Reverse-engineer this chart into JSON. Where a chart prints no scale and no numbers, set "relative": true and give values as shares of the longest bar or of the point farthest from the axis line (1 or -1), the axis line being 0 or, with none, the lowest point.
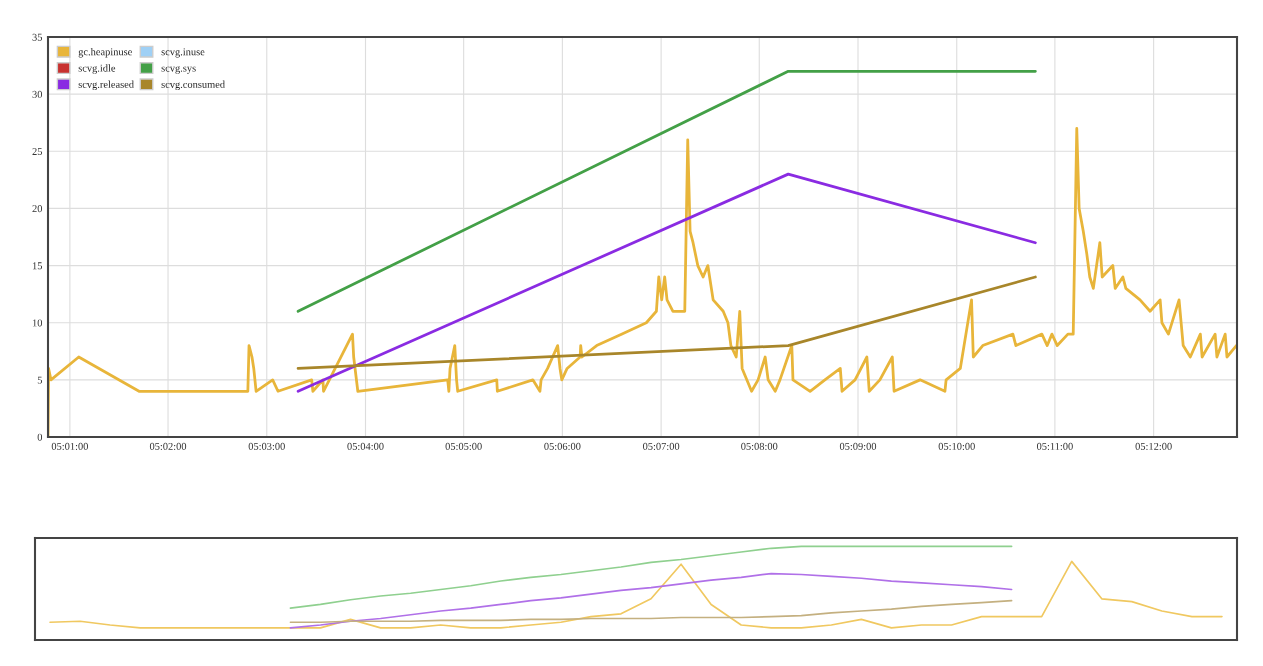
{
  "chart_data": [
    {
      "type": "line",
      "xlim": [
        5.013,
        5.2141
      ],
      "ylim": [
        0,
        35
      ],
      "xticks": [
        {
          "value": 5.0167,
          "label": "05:01:00"
        },
        {
          "value": 5.0333,
          "label": "05:02:00"
        },
        {
          "value": 5.05,
          "label": "05:03:00"
        },
        {
          "value": 5.0667,
          "label": "05:04:00"
        },
        {
          "value": 5.0833,
          "label": "05:05:00"
        },
        {
          "value": 5.1,
          "label": "05:06:00"
        },
        {
          "value": 5.1167,
          "label": "05:07:00"
        },
        {
          "value": 5.1333,
          "label": "05:08:00"
        },
        {
          "value": 5.15,
          "label": "05:09:00"
        },
        {
          "value": 5.1667,
          "label": "05:10:00"
        },
        {
          "value": 5.1833,
          "label": "05:11:00"
        },
        {
          "value": 5.2,
          "label": "05:12:00"
        }
      ],
      "yticks": [
        0,
        5,
        10,
        15,
        20,
        25,
        30,
        35
      ],
      "grid": true,
      "legend": "top left",
      "series": [
        {
          "name": "gc.heapinuse",
          "color": "#e8b53a",
          "x": [
            5.013,
            5.0131,
            5.0135,
            5.0182,
            5.0284,
            5.0468,
            5.047,
            5.0475,
            5.0478,
            5.0482,
            5.051,
            5.0519,
            5.0576,
            5.0578,
            5.0595,
            5.0596,
            5.0645,
            5.0647,
            5.0654,
            5.0806,
            5.0808,
            5.081,
            5.0818,
            5.0821,
            5.0823,
            5.0889,
            5.089,
            5.095,
            5.0962,
            5.0964,
            5.0975,
            5.0992,
            5.0996,
            5.0999,
            5.1008,
            5.103,
            5.1031,
            5.1033,
            5.1058,
            5.11,
            5.1142,
            5.1159,
            5.1163,
            5.1168,
            5.1173,
            5.1177,
            5.1187,
            5.1207,
            5.1212,
            5.1216,
            5.1221,
            5.1229,
            5.1238,
            5.1246,
            5.1255,
            5.1272,
            5.128,
            5.1285,
            5.1294,
            5.13,
            5.1304,
            5.132,
            5.1331,
            5.1343,
            5.1348,
            5.136,
            5.1368,
            5.1388,
            5.139,
            5.1419,
            5.1444,
            5.147,
            5.1473,
            5.1495,
            5.1515,
            5.1519,
            5.1537,
            5.1558,
            5.1561,
            5.1605,
            5.1647,
            5.1649,
            5.1673,
            5.1692,
            5.1695,
            5.1711,
            5.1762,
            5.1767,
            5.1811,
            5.182,
            5.1828,
            5.1837,
            5.1855,
            5.1864,
            5.187,
            5.1874,
            5.1881,
            5.1887,
            5.1892,
            5.1898,
            5.1909,
            5.1913,
            5.1931,
            5.1935,
            5.1948,
            5.1953,
            5.1977,
            5.1994,
            5.2011,
            5.2014,
            5.2025,
            5.2043,
            5.205,
            5.2062,
            5.2079,
            5.2082,
            5.2104,
            5.2107,
            5.2121,
            5.2124,
            5.214
          ],
          "values": [
            0,
            6,
            5,
            7,
            4,
            4,
            8,
            7,
            6,
            4,
            5,
            4,
            5,
            4,
            5,
            4,
            9,
            7,
            4,
            5,
            4,
            6,
            8,
            5,
            4,
            5,
            4,
            5,
            4,
            5,
            6,
            8,
            6,
            5,
            6,
            7,
            8,
            7,
            8,
            9,
            10,
            11,
            14,
            12,
            14,
            12,
            11,
            11,
            26,
            18,
            17,
            15,
            14,
            15,
            12,
            11,
            10,
            8,
            7,
            11,
            6,
            4,
            5,
            7,
            5,
            4,
            5,
            8,
            5,
            4,
            5,
            6,
            4,
            5,
            7,
            4,
            5,
            7,
            4,
            5,
            4,
            5,
            6,
            12,
            7,
            8,
            9,
            8,
            9,
            8,
            9,
            8,
            9,
            9,
            27,
            20,
            18,
            16,
            14,
            13,
            17,
            14,
            15,
            13,
            14,
            13,
            12,
            11,
            12,
            10,
            9,
            12,
            8,
            7,
            9,
            7,
            9,
            7,
            9,
            7,
            8
          ]
        },
        {
          "name": "scvg.inuse",
          "color": "#9fd0f5"
        },
        {
          "name": "scvg.idle",
          "color": "#c8312f"
        },
        {
          "name": "scvg.sys",
          "color": "#43a047",
          "x": [
            5.0553,
            5.1382,
            5.18
          ],
          "values": [
            11,
            32,
            32
          ]
        },
        {
          "name": "scvg.released",
          "color": "#8a2be2",
          "x": [
            5.0553,
            5.1382,
            5.18
          ],
          "values": [
            4,
            23,
            17
          ]
        },
        {
          "name": "scvg.consumed",
          "color": "#a8862a",
          "x": [
            5.0553,
            5.1382,
            5.18
          ],
          "values": [
            6,
            8,
            14
          ]
        }
      ]
    },
    {
      "type": "line",
      "relative": true,
      "categories": [
        null,
        null,
        null,
        null,
        null,
        null,
        null,
        null,
        null,
        null,
        null,
        null,
        null,
        null,
        null,
        null,
        null,
        null,
        null,
        null,
        null,
        null,
        null,
        null,
        null,
        null,
        null,
        null,
        null,
        null,
        null,
        null,
        null,
        null,
        null,
        null,
        null,
        null,
        null,
        null
      ],
      "series": [
        {
          "color": "#f0c860",
          "values": [
            0.19,
            0.2,
            0.16,
            0.13,
            0.13,
            0.13,
            0.13,
            0.13,
            0.13,
            0.13,
            0.22,
            0.13,
            0.13,
            0.16,
            0.13,
            0.13,
            0.16,
            0.19,
            0.25,
            0.28,
            0.44,
            0.81,
            0.38,
            0.16,
            0.13,
            0.13,
            0.16,
            0.22,
            0.13,
            0.16,
            0.16,
            0.25,
            0.25,
            0.25,
            0.84,
            0.44,
            0.41,
            0.31,
            0.25,
            0.25
          ]
        },
        {
          "color": "#8fd08f",
          "values": [
            null,
            null,
            null,
            null,
            null,
            null,
            null,
            null,
            0.34,
            0.38,
            0.43,
            0.47,
            0.5,
            0.54,
            0.58,
            0.63,
            0.67,
            0.7,
            0.74,
            0.78,
            0.83,
            0.86,
            0.9,
            0.94,
            0.98,
            1,
            1,
            1,
            1,
            1,
            1,
            1,
            1,
            null,
            null,
            null,
            null,
            null,
            null,
            null
          ]
        },
        {
          "color": "#b070e8",
          "values": [
            null,
            null,
            null,
            null,
            null,
            null,
            null,
            null,
            0.13,
            0.16,
            0.2,
            0.23,
            0.27,
            0.31,
            0.34,
            0.38,
            0.42,
            0.45,
            0.49,
            0.53,
            0.56,
            0.6,
            0.64,
            0.67,
            0.71,
            0.7,
            0.68,
            0.66,
            0.63,
            0.61,
            0.59,
            0.57,
            0.54,
            null,
            null,
            null,
            null,
            null,
            null,
            null
          ]
        },
        {
          "color": "#c4b080",
          "values": [
            null,
            null,
            null,
            null,
            null,
            null,
            null,
            null,
            0.19,
            0.19,
            0.2,
            0.2,
            0.2,
            0.21,
            0.21,
            0.21,
            0.22,
            0.22,
            0.23,
            0.23,
            0.23,
            0.24,
            0.24,
            0.24,
            0.25,
            0.26,
            0.29,
            0.31,
            0.33,
            0.36,
            0.38,
            0.4,
            0.42,
            null,
            null,
            null,
            null,
            null,
            null,
            null
          ]
        }
      ]
    }
  ]
}
